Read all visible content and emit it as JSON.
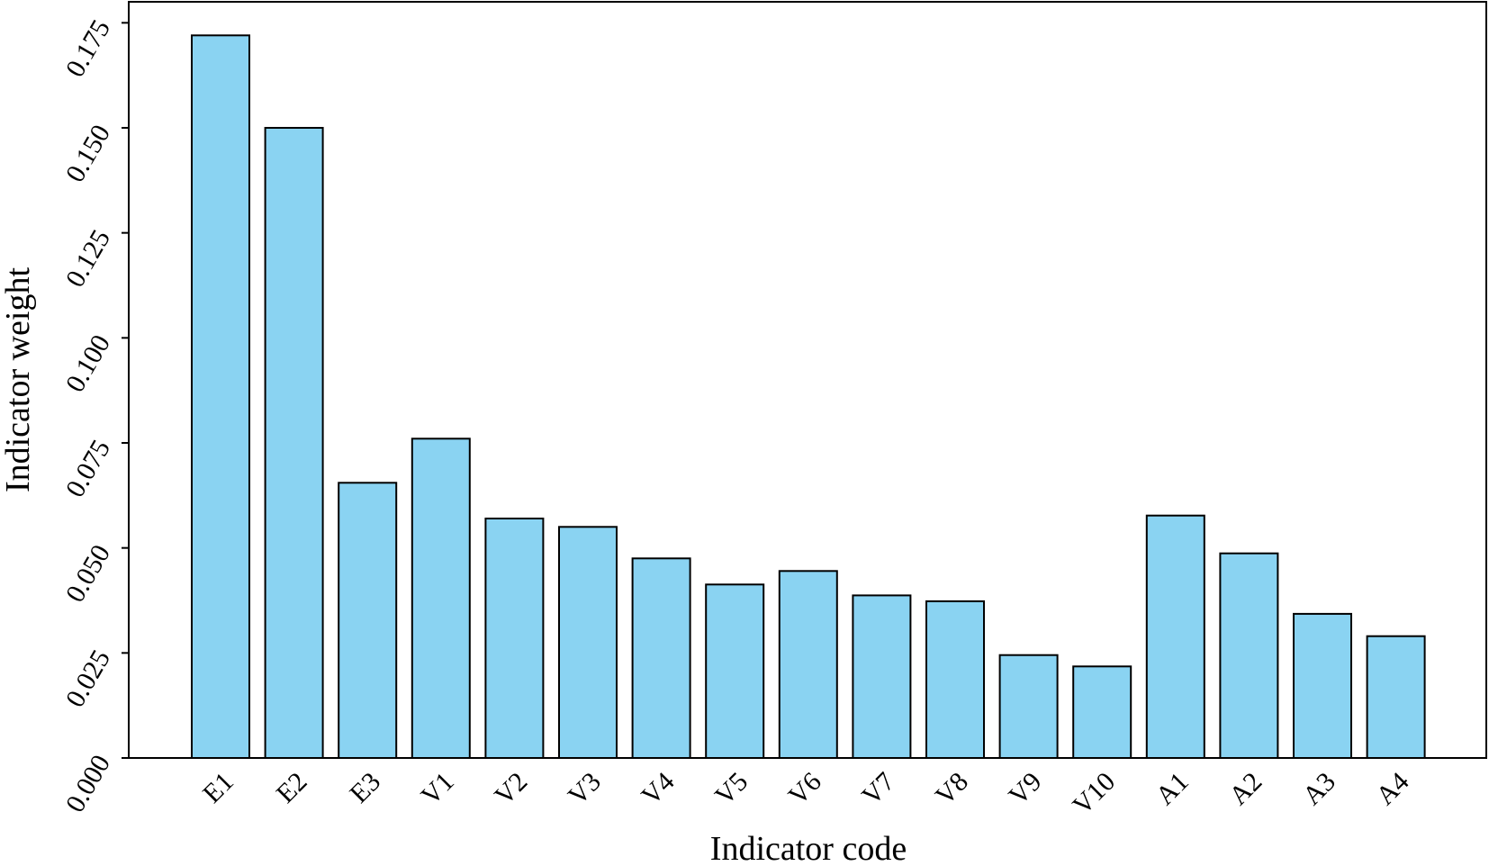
{
  "colors": {
    "bar_fill": "#8ad3f2",
    "bar_stroke": "#000000",
    "axis": "#000000"
  },
  "chart_data": {
    "type": "bar",
    "title": "",
    "xlabel": "Indicator code",
    "ylabel": "Indicator weight",
    "categories": [
      "E1",
      "E2",
      "E3",
      "V1",
      "V2",
      "V3",
      "V4",
      "V5",
      "V6",
      "V7",
      "V8",
      "V9",
      "V10",
      "A1",
      "A2",
      "A3",
      "A4"
    ],
    "values": [
      0.172,
      0.15,
      0.0655,
      0.076,
      0.057,
      0.055,
      0.0475,
      0.0413,
      0.0445,
      0.0387,
      0.0373,
      0.0245,
      0.0218,
      0.0577,
      0.0487,
      0.0343,
      0.029
    ],
    "ylim": [
      0,
      0.18
    ],
    "yticks": [
      "0.000",
      "0.025",
      "0.050",
      "0.075",
      "0.100",
      "0.125",
      "0.150",
      "0.175"
    ],
    "grid": false,
    "legend": "none"
  }
}
